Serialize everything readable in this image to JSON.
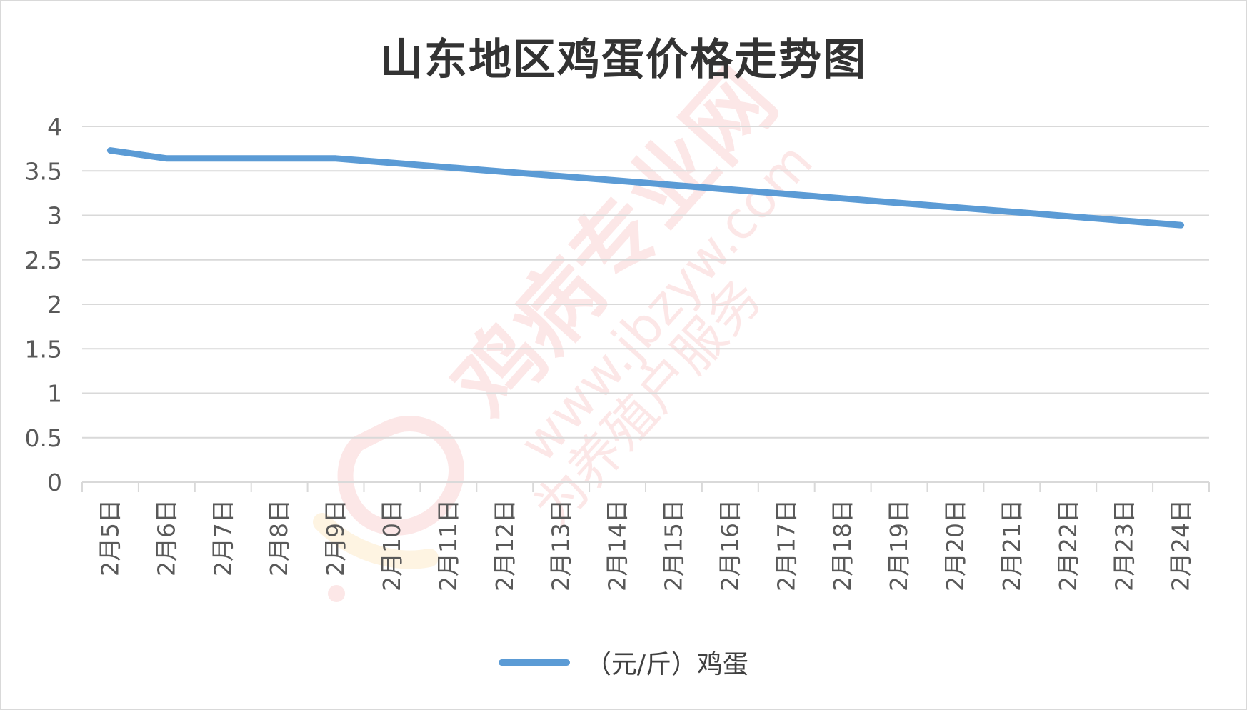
{
  "colors": {
    "series": "#5b9bd5",
    "grid": "#d9d9d9",
    "text": "#595959",
    "title": "#333333",
    "watermark": "#e84a4a"
  },
  "watermark": {
    "brand": "鸡病专业网",
    "url": "www.jbzyw.com",
    "slogan": "为养殖户服务",
    "logo_icon": "chicken-logo-icon"
  },
  "chart_data": {
    "type": "line",
    "title": "山东地区鸡蛋价格走势图",
    "xlabel": "",
    "ylabel": "",
    "ylim": [
      0,
      4
    ],
    "yticks": [
      "0",
      "0.5",
      "1",
      "1.5",
      "2",
      "2.5",
      "3",
      "3.5",
      "4"
    ],
    "categories": [
      "2月5日",
      "2月6日",
      "2月7日",
      "2月8日",
      "2月9日",
      "2月10日",
      "2月11日",
      "2月12日",
      "2月13日",
      "2月14日",
      "2月15日",
      "2月16日",
      "2月17日",
      "2月18日",
      "2月19日",
      "2月20日",
      "2月21日",
      "2月22日",
      "2月23日",
      "2月24日"
    ],
    "series": [
      {
        "name": "（元/斤）鸡蛋",
        "values": [
          3.73,
          3.64,
          3.64,
          3.64,
          3.64,
          3.59,
          3.54,
          3.49,
          3.44,
          3.39,
          3.34,
          3.29,
          3.24,
          3.19,
          3.14,
          3.09,
          3.04,
          2.99,
          2.94,
          2.89
        ]
      }
    ],
    "grid": true,
    "legend": "bottom"
  }
}
